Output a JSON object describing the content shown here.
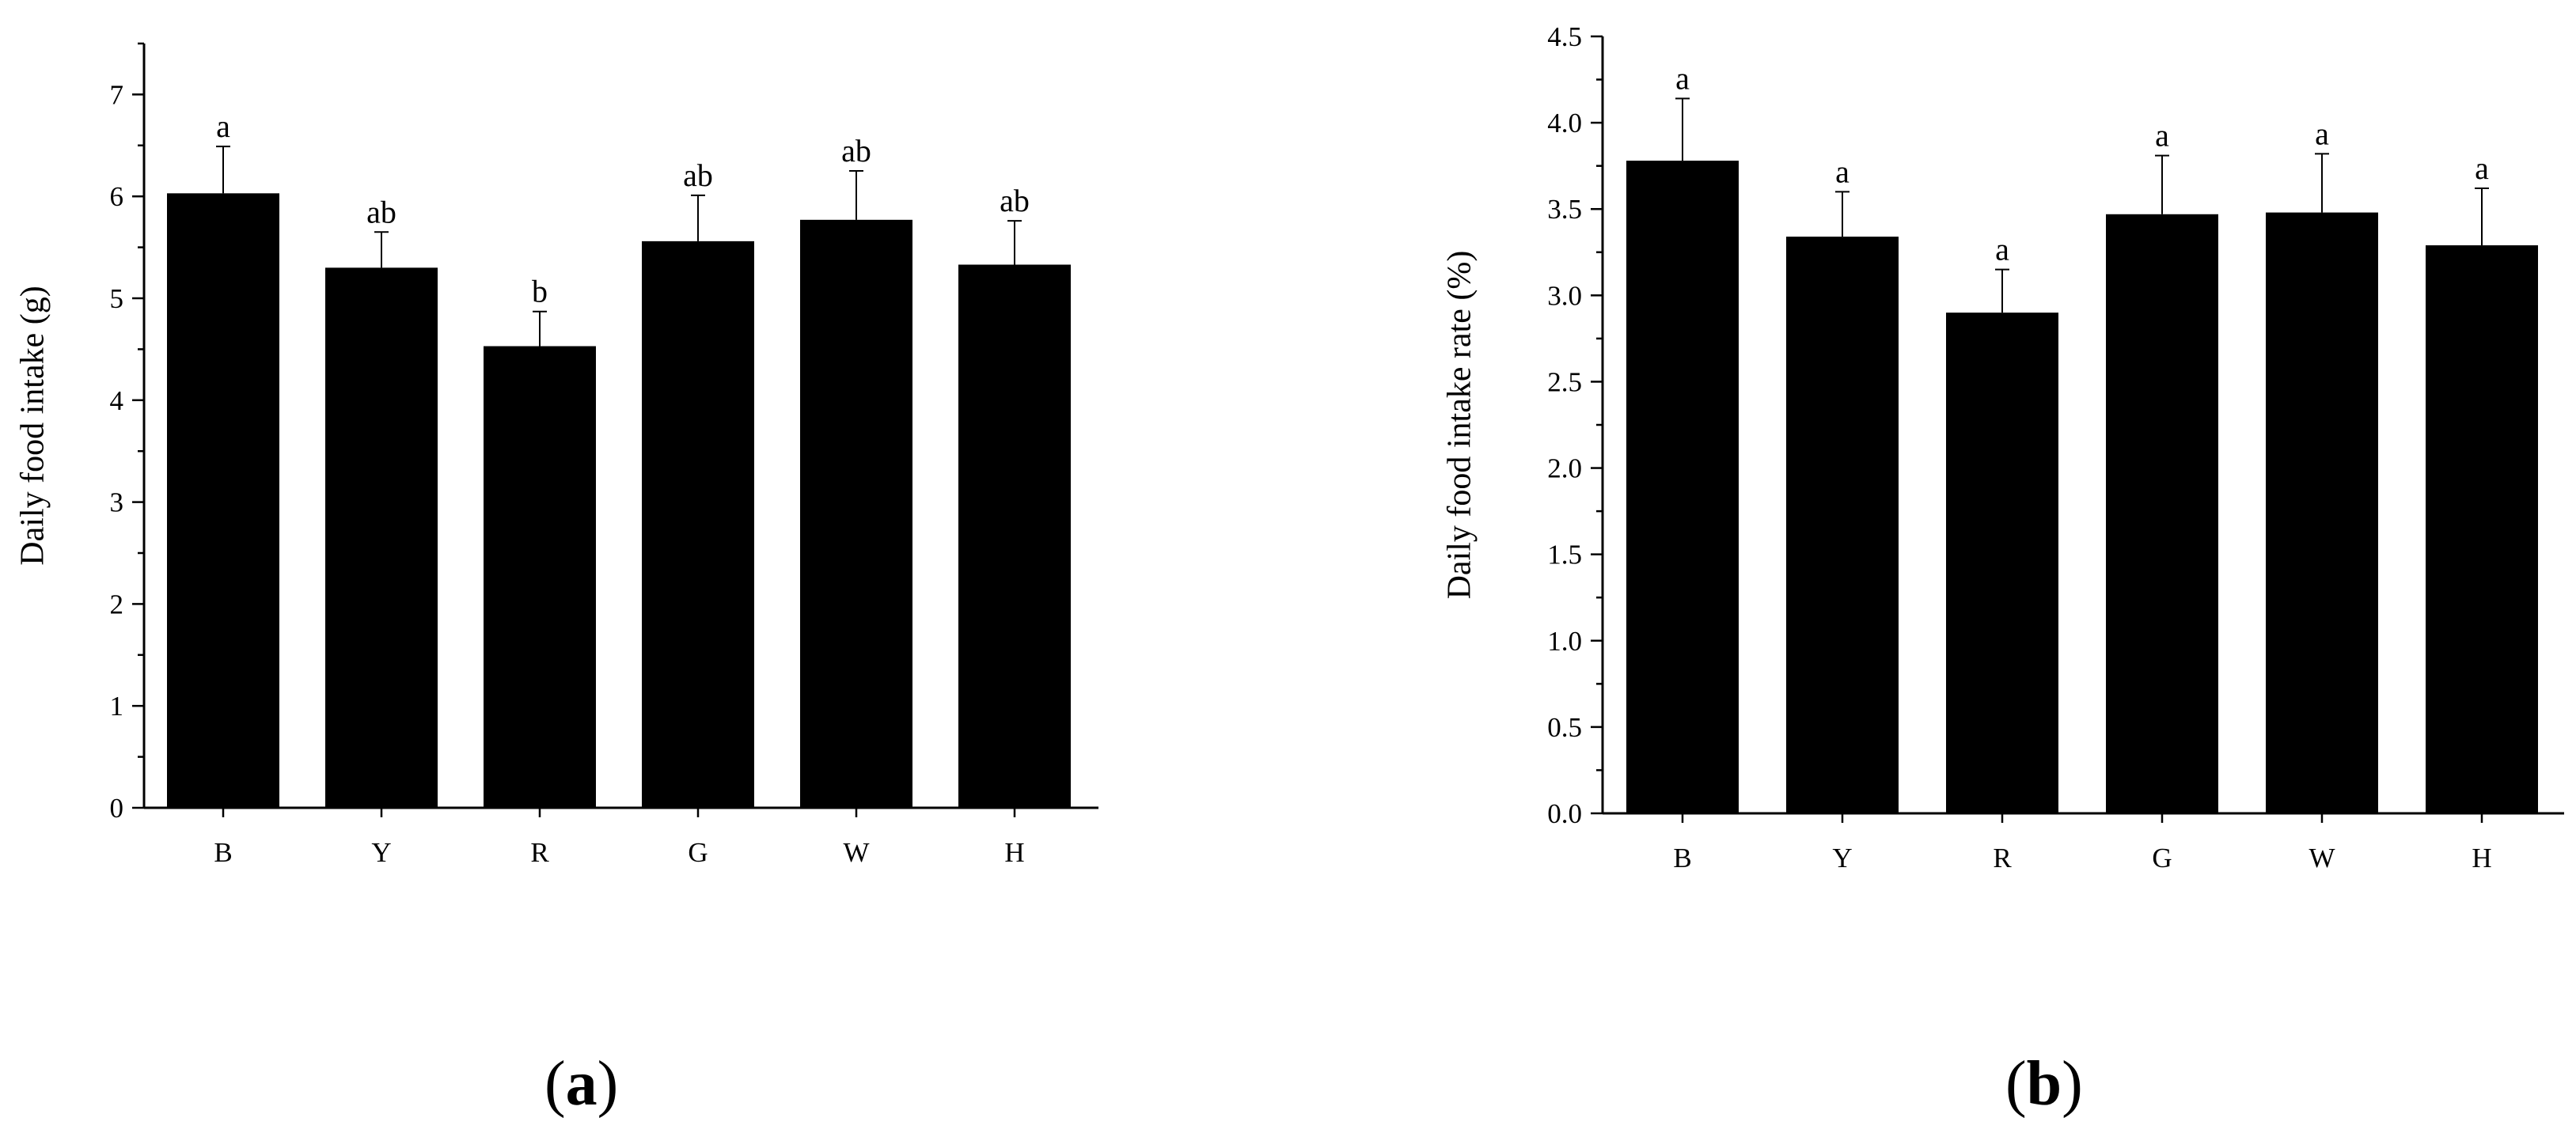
{
  "figure": {
    "panel_labels": [
      "a",
      "b"
    ]
  },
  "chart_data": [
    {
      "type": "bar",
      "panel": "a",
      "categories": [
        "B",
        "Y",
        "R",
        "G",
        "W",
        "H"
      ],
      "values": [
        6.03,
        5.3,
        4.53,
        5.56,
        5.77,
        5.33
      ],
      "errors": [
        0.46,
        0.35,
        0.34,
        0.45,
        0.48,
        0.43
      ],
      "annotations": [
        "a",
        "ab",
        "b",
        "ab",
        "ab",
        "ab"
      ],
      "ylabel": "Daily food intake (g)",
      "xlabel": "",
      "ylim": [
        0,
        7.5
      ],
      "yticks": [
        0,
        1,
        2,
        3,
        4,
        5,
        6,
        7
      ],
      "ytick_labels": [
        "0",
        "1",
        "2",
        "3",
        "4",
        "5",
        "6",
        "7"
      ],
      "bar_color": "#000000",
      "grid": false
    },
    {
      "type": "bar",
      "panel": "b",
      "categories": [
        "B",
        "Y",
        "R",
        "G",
        "W",
        "H"
      ],
      "values": [
        3.78,
        3.34,
        2.9,
        3.47,
        3.48,
        3.29
      ],
      "errors": [
        0.36,
        0.26,
        0.25,
        0.34,
        0.34,
        0.33
      ],
      "annotations": [
        "a",
        "a",
        "a",
        "a",
        "a",
        "a"
      ],
      "ylabel": "Daily food intake rate (%)",
      "xlabel": "",
      "ylim": [
        0,
        4.5
      ],
      "yticks": [
        0,
        0.5,
        1,
        1.5,
        2,
        2.5,
        3,
        3.5,
        4,
        4.5
      ],
      "ytick_labels": [
        "0.0",
        "0.5",
        "1.0",
        "1.5",
        "2.0",
        "2.5",
        "3.0",
        "3.5",
        "4.0",
        "4.5"
      ],
      "bar_color": "#000000",
      "grid": false
    }
  ]
}
